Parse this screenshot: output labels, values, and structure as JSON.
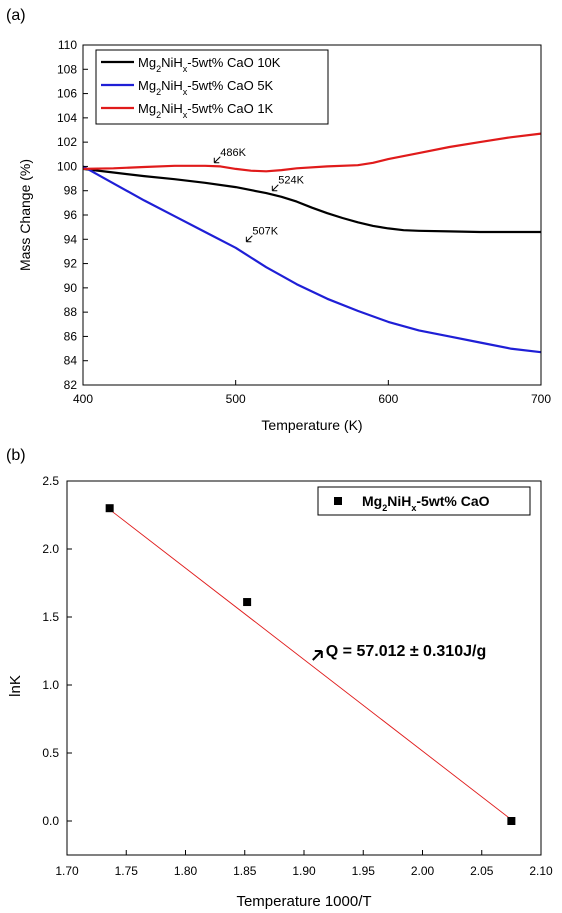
{
  "chart_data": [
    {
      "panel_label": "(a)",
      "type": "line",
      "xlabel": "Temperature (K)",
      "ylabel": "Mass Change (%)",
      "xlim": [
        400,
        700
      ],
      "ylim": [
        82,
        110
      ],
      "xticks": [
        400,
        500,
        600,
        700
      ],
      "yticks": [
        82,
        84,
        86,
        88,
        90,
        92,
        94,
        96,
        98,
        100,
        102,
        104,
        106,
        108,
        110
      ],
      "grid": false,
      "legend": "top-left",
      "series": [
        {
          "name": "Mg2NiHx-5wt% CaO 10K",
          "legend_parts": [
            "Mg",
            "2",
            "NiH",
            "x",
            "-5wt% CaO 10K"
          ],
          "color": "#000000",
          "x": [
            400,
            420,
            440,
            460,
            480,
            500,
            510,
            520,
            530,
            540,
            550,
            560,
            570,
            580,
            590,
            600,
            610,
            620,
            640,
            660,
            680,
            700
          ],
          "y": [
            99.8,
            99.5,
            99.2,
            98.95,
            98.65,
            98.3,
            98.05,
            97.8,
            97.5,
            97.1,
            96.6,
            96.15,
            95.75,
            95.4,
            95.1,
            94.9,
            94.75,
            94.7,
            94.65,
            94.6,
            94.6,
            94.6
          ]
        },
        {
          "name": "Mg2NiHx-5wt% CaO 5K",
          "legend_parts": [
            "Mg",
            "2",
            "NiH",
            "x",
            "-5wt% CaO  5K"
          ],
          "color": "#1f1fd6",
          "x": [
            400,
            420,
            440,
            460,
            480,
            500,
            510,
            520,
            530,
            540,
            550,
            560,
            580,
            600,
            620,
            640,
            660,
            680,
            700
          ],
          "y": [
            100,
            98.6,
            97.2,
            95.9,
            94.6,
            93.3,
            92.5,
            91.7,
            91.0,
            90.3,
            89.7,
            89.1,
            88.1,
            87.2,
            86.5,
            86.0,
            85.5,
            85.0,
            84.7
          ]
        },
        {
          "name": "Mg2NiHx-5wt% CaO 1K",
          "legend_parts": [
            "Mg",
            "2",
            "NiH",
            "x",
            "-5wt% CaO  1K"
          ],
          "color": "#e01b1b",
          "x": [
            400,
            420,
            440,
            460,
            480,
            490,
            500,
            510,
            520,
            530,
            540,
            560,
            580,
            590,
            600,
            620,
            640,
            660,
            680,
            700
          ],
          "y": [
            99.8,
            99.85,
            99.95,
            100.05,
            100.05,
            100.0,
            99.8,
            99.65,
            99.6,
            99.7,
            99.85,
            100.0,
            100.1,
            100.3,
            100.6,
            101.1,
            101.6,
            102.0,
            102.4,
            102.7
          ]
        }
      ],
      "annotations": [
        {
          "text": "486K",
          "x": 486,
          "y": 100.3
        },
        {
          "text": "524K",
          "x": 524,
          "y": 98.0
        },
        {
          "text": "507K",
          "x": 507,
          "y": 93.8
        }
      ]
    },
    {
      "panel_label": "(b)",
      "type": "scatter",
      "xlabel": "Temperature 1000/T",
      "ylabel": "lnK",
      "xlim": [
        1.7,
        2.1
      ],
      "ylim": [
        -0.25,
        2.5
      ],
      "xticks": [
        "1.70",
        "1.75",
        "1.80",
        "1.85",
        "1.90",
        "1.95",
        "2.00",
        "2.05",
        "2.10"
      ],
      "yticks": [
        "0.0",
        "0.5",
        "1.0",
        "1.5",
        "2.0",
        "2.5"
      ],
      "grid": false,
      "legend": "top-right",
      "series": [
        {
          "name": "Mg2NiHx-5wt% CaO",
          "legend_parts": [
            "Mg",
            "2",
            "NiH",
            "x",
            "-5wt% CaO"
          ],
          "color": "#000000",
          "x": [
            1.736,
            1.852,
            2.075
          ],
          "y": [
            2.3,
            1.61,
            0.0
          ]
        }
      ],
      "fit_line": {
        "color": "#e01b1b",
        "x": [
          1.736,
          2.075
        ],
        "y": [
          2.29,
          0.01
        ]
      },
      "annotation": {
        "text": "Q = 57.012 ± 0.310J/g",
        "x": 1.915,
        "y": 1.25
      }
    }
  ]
}
